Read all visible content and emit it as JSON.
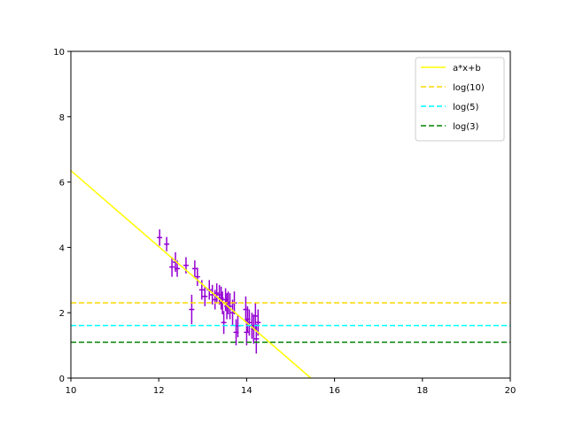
{
  "chart_data": {
    "type": "scatter",
    "title": "",
    "xlabel": "",
    "ylabel": "",
    "xlim": [
      10,
      20
    ],
    "ylim": [
      0,
      10
    ],
    "xticks": [
      10,
      12,
      14,
      16,
      18,
      20
    ],
    "yticks": [
      0,
      2,
      4,
      6,
      8,
      10
    ],
    "grid": false,
    "legend_position": "top-right",
    "series": [
      {
        "kind": "errorbar",
        "color": "#9400d3",
        "points": [
          {
            "x": 12.02,
            "y": 4.3,
            "xerr": 0.06,
            "yerr": 0.25
          },
          {
            "x": 12.18,
            "y": 4.1,
            "xerr": 0.06,
            "yerr": 0.22
          },
          {
            "x": 12.3,
            "y": 3.4,
            "xerr": 0.06,
            "yerr": 0.3
          },
          {
            "x": 12.38,
            "y": 3.55,
            "xerr": 0.06,
            "yerr": 0.3
          },
          {
            "x": 12.42,
            "y": 3.35,
            "xerr": 0.06,
            "yerr": 0.25
          },
          {
            "x": 12.62,
            "y": 3.45,
            "xerr": 0.06,
            "yerr": 0.25
          },
          {
            "x": 12.75,
            "y": 2.1,
            "xerr": 0.06,
            "yerr": 0.45
          },
          {
            "x": 12.82,
            "y": 3.35,
            "xerr": 0.06,
            "yerr": 0.25
          },
          {
            "x": 12.88,
            "y": 3.1,
            "xerr": 0.06,
            "yerr": 0.28
          },
          {
            "x": 12.98,
            "y": 2.7,
            "xerr": 0.06,
            "yerr": 0.3
          },
          {
            "x": 13.05,
            "y": 2.5,
            "xerr": 0.06,
            "yerr": 0.3
          },
          {
            "x": 13.15,
            "y": 2.7,
            "xerr": 0.06,
            "yerr": 0.3
          },
          {
            "x": 13.22,
            "y": 2.55,
            "xerr": 0.06,
            "yerr": 0.3
          },
          {
            "x": 13.28,
            "y": 2.4,
            "xerr": 0.06,
            "yerr": 0.3
          },
          {
            "x": 13.32,
            "y": 2.6,
            "xerr": 0.06,
            "yerr": 0.3
          },
          {
            "x": 13.38,
            "y": 2.55,
            "xerr": 0.06,
            "yerr": 0.3
          },
          {
            "x": 13.42,
            "y": 2.45,
            "xerr": 0.06,
            "yerr": 0.35
          },
          {
            "x": 13.45,
            "y": 2.3,
            "xerr": 0.06,
            "yerr": 0.35
          },
          {
            "x": 13.48,
            "y": 1.7,
            "xerr": 0.06,
            "yerr": 0.35
          },
          {
            "x": 13.52,
            "y": 2.4,
            "xerr": 0.06,
            "yerr": 0.35
          },
          {
            "x": 13.55,
            "y": 2.2,
            "xerr": 0.06,
            "yerr": 0.4
          },
          {
            "x": 13.58,
            "y": 2.3,
            "xerr": 0.06,
            "yerr": 0.35
          },
          {
            "x": 13.62,
            "y": 2.2,
            "xerr": 0.06,
            "yerr": 0.4
          },
          {
            "x": 13.68,
            "y": 2.0,
            "xerr": 0.06,
            "yerr": 0.4
          },
          {
            "x": 13.72,
            "y": 2.3,
            "xerr": 0.06,
            "yerr": 0.35
          },
          {
            "x": 13.76,
            "y": 1.4,
            "xerr": 0.06,
            "yerr": 0.4
          },
          {
            "x": 13.8,
            "y": 1.6,
            "xerr": 0.06,
            "yerr": 0.35
          },
          {
            "x": 13.98,
            "y": 2.1,
            "xerr": 0.06,
            "yerr": 0.4
          },
          {
            "x": 14.0,
            "y": 1.4,
            "xerr": 0.06,
            "yerr": 0.4
          },
          {
            "x": 14.02,
            "y": 1.8,
            "xerr": 0.06,
            "yerr": 0.4
          },
          {
            "x": 14.06,
            "y": 1.7,
            "xerr": 0.06,
            "yerr": 0.4
          },
          {
            "x": 14.12,
            "y": 1.6,
            "xerr": 0.06,
            "yerr": 0.4
          },
          {
            "x": 14.16,
            "y": 1.5,
            "xerr": 0.06,
            "yerr": 0.45
          },
          {
            "x": 14.2,
            "y": 1.9,
            "xerr": 0.06,
            "yerr": 0.4
          },
          {
            "x": 14.22,
            "y": 1.2,
            "xerr": 0.06,
            "yerr": 0.45
          },
          {
            "x": 14.26,
            "y": 1.7,
            "xerr": 0.06,
            "yerr": 0.4
          }
        ]
      },
      {
        "kind": "line",
        "name": "a*x+b",
        "color": "#ffff00",
        "style": "solid",
        "x": [
          10,
          15.46
        ],
        "y": [
          6.35,
          0
        ]
      },
      {
        "kind": "hline",
        "name": "log(10)",
        "color": "#ffd700",
        "style": "dashed",
        "y": 2.3026
      },
      {
        "kind": "hline",
        "name": "log(5)",
        "color": "#00ffff",
        "style": "dashed",
        "y": 1.6094
      },
      {
        "kind": "hline",
        "name": "log(3)",
        "color": "#008000",
        "style": "dashed",
        "y": 1.0986
      }
    ]
  }
}
